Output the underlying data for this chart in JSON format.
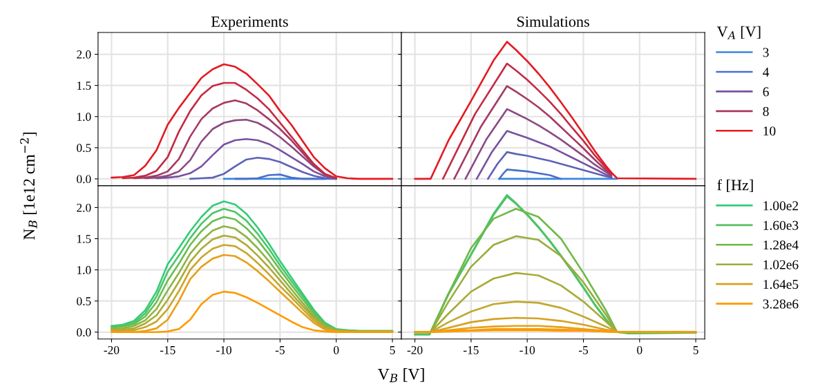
{
  "chart_data": [
    {
      "type": "line",
      "title": "Experiments",
      "ylabel": "N$_{B}$ [1e12 cm$^{−2}$]",
      "xlabel": "V$_{B}$ [V]",
      "x": [
        -20,
        -19,
        -18,
        -17,
        -16,
        -15,
        -14,
        -13,
        -12,
        -11,
        -10,
        -9,
        -8,
        -7,
        -6,
        -5,
        -4,
        -3,
        -2,
        -1,
        0,
        1,
        2,
        3,
        4,
        5
      ],
      "series": [
        {
          "color": "#3a86e0",
          "values": [
            null,
            null,
            null,
            null,
            null,
            null,
            null,
            null,
            null,
            null,
            0,
            0,
            0,
            0,
            0,
            0,
            0,
            0,
            0,
            0,
            0,
            null,
            null,
            null,
            null,
            null
          ]
        },
        {
          "color": "#4b6fcc",
          "values": [
            null,
            null,
            null,
            null,
            null,
            null,
            null,
            null,
            null,
            null,
            null,
            0,
            0,
            0.01,
            0.06,
            0.07,
            0.02,
            0,
            0,
            0,
            null,
            null,
            null,
            null,
            null,
            null
          ]
        },
        {
          "color": "#5e62b8",
          "values": [
            null,
            null,
            null,
            null,
            null,
            null,
            null,
            0,
            0.01,
            0.02,
            0.08,
            0.2,
            0.31,
            0.34,
            0.32,
            0.27,
            0.19,
            0.11,
            0.05,
            0.01,
            0,
            null,
            null,
            null,
            null,
            null
          ]
        },
        {
          "color": "#7752a0",
          "values": [
            null,
            null,
            null,
            null,
            0.01,
            0.02,
            0.04,
            0.09,
            0.2,
            0.38,
            0.55,
            0.62,
            0.64,
            0.62,
            0.56,
            0.46,
            0.35,
            0.24,
            0.12,
            0.04,
            0.01,
            null,
            null,
            null,
            null,
            null
          ]
        },
        {
          "color": "#8c4a84",
          "values": [
            null,
            null,
            null,
            0.01,
            0.02,
            0.05,
            0.12,
            0.3,
            0.6,
            0.8,
            0.9,
            0.94,
            0.95,
            0.9,
            0.8,
            0.67,
            0.52,
            0.36,
            0.2,
            0.07,
            0.01,
            null,
            null,
            null,
            null,
            null
          ]
        },
        {
          "color": "#a53a62",
          "values": [
            null,
            null,
            0.01,
            0.02,
            0.05,
            0.12,
            0.32,
            0.68,
            0.96,
            1.13,
            1.22,
            1.26,
            1.21,
            1.1,
            0.96,
            0.8,
            0.62,
            0.42,
            0.22,
            0.07,
            0.01,
            null,
            null,
            null,
            null,
            null
          ]
        },
        {
          "color": "#c42a44",
          "values": [
            null,
            0.01,
            0.02,
            0.05,
            0.13,
            0.35,
            0.76,
            1.09,
            1.34,
            1.49,
            1.54,
            1.54,
            1.43,
            1.29,
            1.12,
            0.9,
            0.68,
            0.46,
            0.24,
            0.08,
            0.01,
            null,
            null,
            null,
            null,
            null
          ]
        },
        {
          "color": "#e41a22",
          "values": [
            0.02,
            0.03,
            0.06,
            0.21,
            0.46,
            0.87,
            1.14,
            1.38,
            1.62,
            1.76,
            1.84,
            1.8,
            1.69,
            1.52,
            1.34,
            1.09,
            0.87,
            0.61,
            0.35,
            0.17,
            0.04,
            0.01,
            0,
            0,
            0,
            0
          ]
        }
      ],
      "xlim": [
        -21.2,
        5.8
      ],
      "ylim": [
        -0.11,
        2.35
      ],
      "xticks": [
        -20,
        -15,
        -10,
        -5,
        0,
        5
      ],
      "yticks": [
        {
          "value": 0,
          "label": "0.0"
        },
        0.5,
        {
          "value": 1,
          "label": "1.0"
        },
        1.5,
        {
          "value": 2,
          "label": "2.0"
        }
      ],
      "grid": true,
      "tick_labels": "y"
    },
    {
      "type": "line",
      "title": "Simulations",
      "legend": "right",
      "legend_title": "V$_{A}$ [V]",
      "series": [
        {
          "name": "3",
          "color": "#3a86e0",
          "x": [
            -12.5,
            -2
          ],
          "values": [
            0,
            0
          ]
        },
        {
          "name": "4",
          "color": "#4b6fcc",
          "x": [
            -12.5,
            -12.15,
            -11.8,
            -10,
            -8,
            -7
          ],
          "values": [
            0,
            0.08,
            0.15,
            0.12,
            0.06,
            0
          ]
        },
        {
          "color": "#5e62b8",
          "x": [
            -13.5,
            -12.65,
            -11.8,
            -11,
            -10,
            -9,
            -8,
            -7,
            -6,
            -5,
            -4,
            -3,
            -2.5
          ],
          "values": [
            0,
            0.24,
            0.43,
            0.4,
            0.37,
            0.33,
            0.29,
            0.24,
            0.19,
            0.14,
            0.09,
            0.04,
            0.02
          ]
        },
        {
          "name": "6",
          "color": "#7752a0",
          "x": [
            -14.5,
            -13.15,
            -11.8,
            -11,
            -10,
            -9,
            -8,
            -7,
            -6,
            -5,
            -4,
            -3,
            -2.5
          ],
          "values": [
            0,
            0.43,
            0.77,
            0.72,
            0.66,
            0.59,
            0.52,
            0.43,
            0.34,
            0.25,
            0.16,
            0.07,
            0.03
          ]
        },
        {
          "color": "#8c4a84",
          "x": [
            -15.5,
            -13.65,
            -11.8,
            -11,
            -10,
            -9,
            -8,
            -7,
            -6,
            -5,
            -4,
            -3,
            -2.5
          ],
          "values": [
            0,
            0.63,
            1.12,
            1.05,
            0.96,
            0.86,
            0.75,
            0.63,
            0.5,
            0.37,
            0.23,
            0.11,
            0.05
          ]
        },
        {
          "name": "8",
          "color": "#a53a62",
          "x": [
            -16.5,
            -14.15,
            -11.8,
            -11,
            -10,
            -9,
            -8,
            -7,
            -6,
            -5,
            -4,
            -3,
            -2.5
          ],
          "values": [
            0,
            0.83,
            1.49,
            1.4,
            1.28,
            1.15,
            1.0,
            0.83,
            0.66,
            0.49,
            0.31,
            0.14,
            0.07
          ]
        },
        {
          "color": "#c42a44",
          "x": [
            -17.5,
            -14.65,
            -11.8,
            -11,
            -10,
            -9,
            -8,
            -7,
            -6,
            -5,
            -4,
            -3,
            -2.5
          ],
          "values": [
            0,
            1.04,
            1.85,
            1.74,
            1.59,
            1.42,
            1.24,
            1.04,
            0.82,
            0.61,
            0.38,
            0.18,
            0.08
          ]
        },
        {
          "name": "10",
          "color": "#e41a22",
          "x": [
            -20,
            -18.6,
            -17,
            -15,
            -13,
            -11.8,
            -11,
            -10,
            -9,
            -8,
            -7,
            -6,
            -5,
            -4,
            -3,
            -2.5,
            -2,
            5
          ],
          "values": [
            0,
            0,
            0.62,
            1.25,
            1.9,
            2.2,
            2.07,
            1.89,
            1.69,
            1.47,
            1.23,
            0.98,
            0.72,
            0.45,
            0.21,
            0.1,
            0.01,
            0
          ]
        }
      ],
      "xlim": [
        -21.2,
        5.8
      ],
      "ylim": [
        -0.11,
        2.35
      ],
      "xticks": [
        -20,
        -15,
        -10,
        -5,
        0,
        5
      ],
      "yticks": [
        0.0,
        0.5,
        1.0,
        1.5,
        2.0
      ],
      "grid": true,
      "tick_labels": false
    },
    {
      "type": "line",
      "x": [
        -20,
        -19,
        -18,
        -17,
        -16,
        -15,
        -14,
        -13,
        -12,
        -11,
        -10,
        -9,
        -8,
        -7,
        -6,
        -5,
        -4,
        -3,
        -2,
        -1,
        0,
        1,
        2,
        3,
        4,
        5
      ],
      "series": [
        {
          "color": "#33cc77",
          "values": [
            0.1,
            0.12,
            0.18,
            0.35,
            0.65,
            1.09,
            1.35,
            1.62,
            1.85,
            2.03,
            2.1,
            2.05,
            1.9,
            1.68,
            1.42,
            1.14,
            0.88,
            0.62,
            0.36,
            0.15,
            0.05,
            0.03,
            0.02,
            0.02,
            0.02,
            0.02
          ]
        },
        {
          "color": "#4cc566",
          "values": [
            0.09,
            0.1,
            0.15,
            0.3,
            0.57,
            0.97,
            1.23,
            1.51,
            1.74,
            1.91,
            1.98,
            1.93,
            1.79,
            1.58,
            1.34,
            1.07,
            0.82,
            0.58,
            0.33,
            0.13,
            0.04,
            0.03,
            0.02,
            0.02,
            0.02,
            0.02
          ]
        },
        {
          "color": "#6bbd52",
          "values": [
            0.07,
            0.09,
            0.13,
            0.25,
            0.48,
            0.83,
            1.1,
            1.4,
            1.62,
            1.78,
            1.85,
            1.81,
            1.67,
            1.48,
            1.25,
            1.0,
            0.76,
            0.53,
            0.3,
            0.12,
            0.04,
            0.02,
            0.01,
            0.01,
            0.01,
            0.01
          ]
        },
        {
          "color": "#8db444",
          "values": [
            0.05,
            0.06,
            0.1,
            0.19,
            0.37,
            0.67,
            0.95,
            1.26,
            1.47,
            1.63,
            1.7,
            1.66,
            1.53,
            1.35,
            1.14,
            0.91,
            0.69,
            0.47,
            0.26,
            0.1,
            0.03,
            0.02,
            0.01,
            0.01,
            0.01,
            0.01
          ]
        },
        {
          "color": "#aaac36",
          "values": [
            0.04,
            0.04,
            0.06,
            0.14,
            0.27,
            0.52,
            0.81,
            1.13,
            1.34,
            1.49,
            1.55,
            1.52,
            1.4,
            1.23,
            1.04,
            0.83,
            0.62,
            0.42,
            0.23,
            0.08,
            0.02,
            0.01,
            0.01,
            0.01,
            0.01,
            0.01
          ]
        },
        {
          "color": "#c8a62a",
          "values": [
            0.02,
            0.02,
            0.03,
            0.08,
            0.17,
            0.37,
            0.66,
            1.0,
            1.2,
            1.34,
            1.4,
            1.38,
            1.27,
            1.11,
            0.93,
            0.74,
            0.56,
            0.37,
            0.19,
            0.06,
            0.02,
            0.01,
            0,
            0,
            0,
            0
          ]
        },
        {
          "color": "#e6a01a",
          "values": [
            0,
            0,
            0,
            0.02,
            0.06,
            0.2,
            0.5,
            0.85,
            1.05,
            1.18,
            1.24,
            1.22,
            1.12,
            0.98,
            0.82,
            0.65,
            0.48,
            0.31,
            0.15,
            0.04,
            0.01,
            0,
            0,
            0,
            0,
            0
          ]
        },
        {
          "color": "#ff9900",
          "values": [
            0,
            0,
            0,
            0,
            0,
            0.01,
            0.05,
            0.2,
            0.45,
            0.6,
            0.65,
            0.63,
            0.56,
            0.47,
            0.37,
            0.27,
            0.17,
            0.08,
            0.03,
            0.01,
            0,
            0,
            0,
            0,
            0,
            0
          ]
        }
      ],
      "xlim": [
        -21.2,
        5.8
      ],
      "ylim": [
        -0.11,
        2.35
      ],
      "xticks": [
        -20,
        -15,
        -10,
        -5,
        0,
        5
      ],
      "yticks": [
        {
          "value": 0,
          "label": "0.0"
        },
        0.5,
        {
          "value": 1,
          "label": "1.0"
        },
        1.5,
        {
          "value": 2,
          "label": "2.0"
        }
      ],
      "grid": true
    },
    {
      "type": "line",
      "legend": "right",
      "legend_title": "f [Hz]",
      "series": [
        {
          "name": "1.00e2",
          "color": "#33cc77",
          "x": [
            -20,
            -18.7,
            -18.6,
            -17,
            -15,
            -13,
            -11.8,
            -11,
            -10,
            -9,
            -8,
            -7,
            -6,
            -5,
            -4,
            -3,
            -2.5,
            -2,
            -1,
            5
          ],
          "values": [
            -0.04,
            -0.04,
            0,
            0.62,
            1.25,
            1.9,
            2.2,
            2.07,
            1.89,
            1.69,
            1.47,
            1.23,
            0.98,
            0.72,
            0.45,
            0.21,
            0.1,
            0,
            -0.02,
            -0.01
          ]
        },
        {
          "name": "1.60e3",
          "color": "#55c060",
          "x": [
            -20,
            -18.7,
            -18.6,
            -17,
            -15,
            -13,
            -11.8,
            -11,
            -10,
            -9,
            -8,
            -7,
            -6,
            -5,
            -4,
            -3,
            -2.5,
            -2,
            -1,
            5
          ],
          "values": [
            -0.03,
            -0.03,
            0,
            0.61,
            1.24,
            1.88,
            2.18,
            2.06,
            1.88,
            1.68,
            1.46,
            1.22,
            0.97,
            0.71,
            0.44,
            0.2,
            0.09,
            0,
            -0.01,
            -0.01
          ]
        },
        {
          "name": "1.28e4",
          "color": "#70b848",
          "x": [
            -20,
            -18.6,
            -17,
            -15,
            -13,
            -11,
            -9,
            -7,
            -5,
            -3,
            -2,
            5
          ],
          "values": [
            0,
            0,
            0.62,
            1.35,
            1.82,
            1.98,
            1.85,
            1.5,
            0.95,
            0.35,
            0,
            0
          ]
        },
        {
          "name": "1.02e6",
          "color": "#98ad3c",
          "x": [
            -20,
            -18.6,
            -17,
            -15,
            -13,
            -11,
            -9,
            -7,
            -5,
            -3,
            -2,
            5
          ],
          "values": [
            0,
            0,
            0.49,
            1.05,
            1.4,
            1.54,
            1.48,
            1.22,
            0.8,
            0.28,
            0,
            0
          ]
        },
        {
          "color": "#a8ab38",
          "x": [
            -20,
            -18.6,
            -17,
            -15,
            -13,
            -11,
            -9,
            -7,
            -5,
            -3,
            -2,
            5
          ],
          "values": [
            0,
            0,
            0.3,
            0.65,
            0.86,
            0.95,
            0.91,
            0.75,
            0.49,
            0.17,
            0,
            0
          ]
        },
        {
          "color": "#c0a830",
          "x": [
            -20,
            -18.6,
            -17,
            -15,
            -13,
            -11,
            -9,
            -7,
            -5,
            -3,
            -2,
            5
          ],
          "values": [
            0,
            0,
            0.16,
            0.33,
            0.45,
            0.49,
            0.47,
            0.39,
            0.25,
            0.09,
            0,
            0
          ]
        },
        {
          "name": "1.64e5",
          "color": "#d8a020",
          "x": [
            -20,
            -18.6,
            -17,
            -15,
            -13,
            -11,
            -9,
            -7,
            -5,
            -3,
            -2,
            5
          ],
          "values": [
            0,
            0,
            0.07,
            0.16,
            0.21,
            0.23,
            0.22,
            0.18,
            0.12,
            0.04,
            0,
            0
          ]
        },
        {
          "color": "#e8a015",
          "x": [
            -20,
            -18.6,
            -17,
            -15,
            -13,
            -11,
            -9,
            -7,
            -5,
            -3,
            -2,
            5
          ],
          "values": [
            0,
            0,
            0.03,
            0.07,
            0.09,
            0.1,
            0.1,
            0.08,
            0.05,
            0.02,
            0,
            0
          ]
        },
        {
          "color": "#f59c0c",
          "x": [
            -20,
            -18.6,
            -17,
            -15,
            -13,
            -11,
            -9,
            -7,
            -5,
            -3,
            -2,
            5
          ],
          "values": [
            0,
            0,
            0.02,
            0.03,
            0.05,
            0.05,
            0.05,
            0.04,
            0.03,
            0.01,
            0,
            0
          ]
        },
        {
          "name": "3.28e6",
          "color": "#ff9900",
          "x": [
            -20,
            -18.6,
            -17,
            -15,
            -13,
            -11,
            -9,
            -7,
            -5,
            -3,
            -2,
            5
          ],
          "values": [
            0,
            0,
            0.01,
            0.02,
            0.03,
            0.03,
            0.03,
            0.02,
            0.02,
            0.01,
            0,
            0
          ]
        }
      ],
      "xlim": [
        -21.2,
        5.8
      ],
      "ylim": [
        -0.11,
        2.35
      ],
      "xticks": [
        -20,
        -15,
        -10,
        -5,
        0,
        5
      ],
      "yticks": [
        0.0,
        0.5,
        1.0,
        1.5,
        2.0
      ],
      "grid": true,
      "tick_labels": "x"
    }
  ]
}
